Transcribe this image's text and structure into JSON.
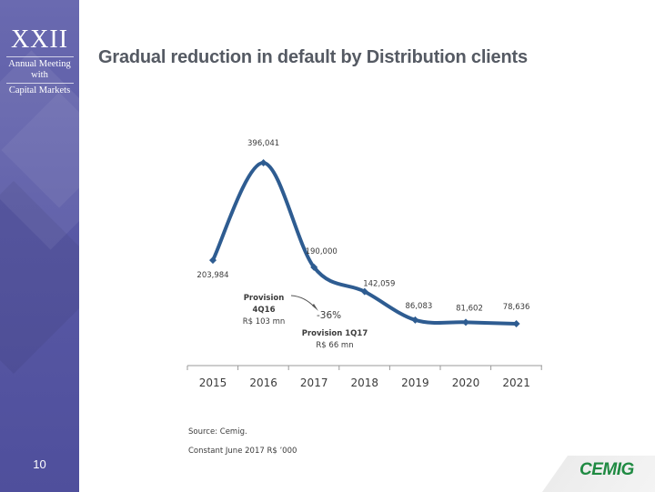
{
  "sidebar": {
    "logo_numeral": "XXII",
    "logo_line1": "Annual Meeting",
    "logo_line2": "with",
    "logo_line3": "Capital Markets",
    "page_number": "10"
  },
  "title": "Gradual reduction in default by Distribution clients",
  "chart_data": {
    "type": "line",
    "title": "",
    "categories": [
      "2015",
      "2016",
      "2017",
      "2018",
      "2019",
      "2020",
      "2021"
    ],
    "series": [
      {
        "values": [
          203984,
          396041,
          190000,
          142059,
          86083,
          81602,
          78636
        ]
      }
    ],
    "data_labels": [
      "203,984",
      "396,041",
      "190,000",
      "142,059",
      "86,083",
      "81,602",
      "78,636"
    ],
    "xlabel": "",
    "ylabel": "",
    "grid": false,
    "color": "#2e5c91",
    "annotations": {
      "prov1_line1": "Provision",
      "prov1_line2": "4Q16",
      "prov1_line3": "R$ 103 mn",
      "change": "-36%",
      "prov2_line1": "Provision 1Q17",
      "prov2_line2": "R$ 66 mn"
    }
  },
  "footer": {
    "source": "Source: Cemig.",
    "note": "Constant June 2017 R$ ’000",
    "brand": "CEMIG"
  },
  "colors": {
    "sidebar": "#5a5aa6",
    "title": "#555a63",
    "line": "#2e5c91",
    "brand": "#1f8a42"
  }
}
